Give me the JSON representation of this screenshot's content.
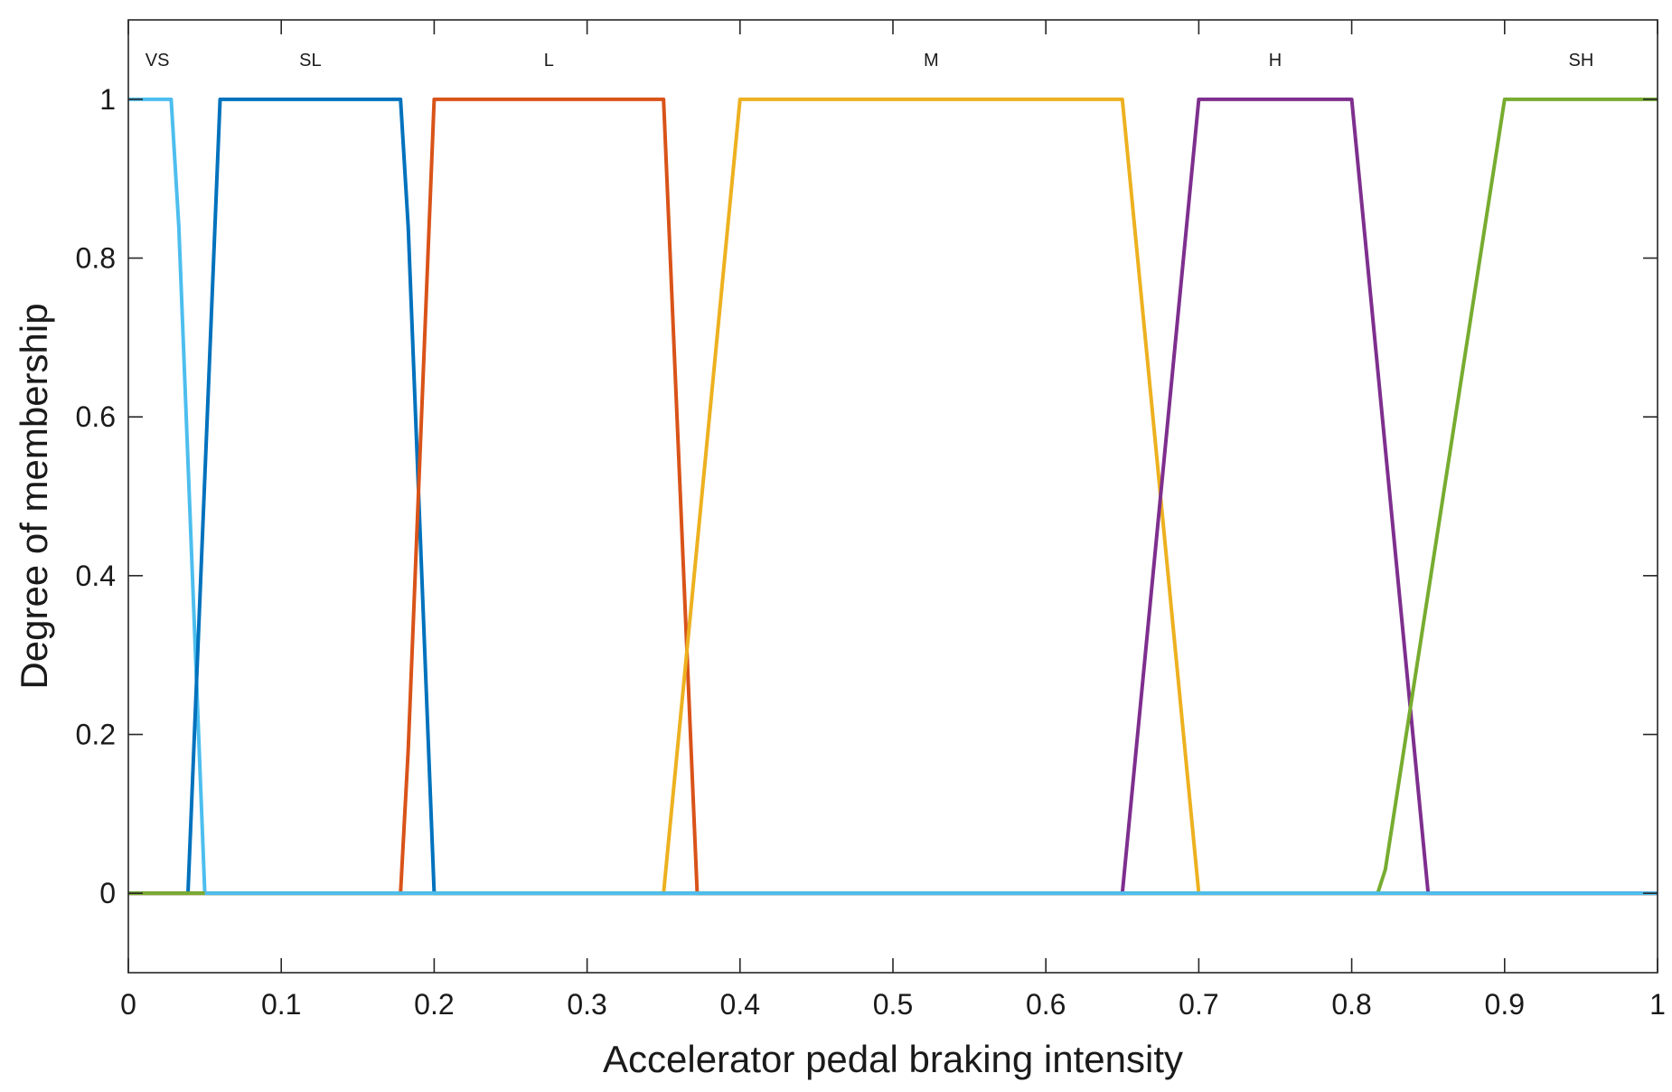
{
  "chart_data": {
    "type": "line",
    "title": "",
    "xlabel": "Accelerator pedal braking intensity",
    "ylabel": "Degree of membership",
    "xlim": [
      0,
      1
    ],
    "ylim": [
      -0.1,
      1.1
    ],
    "xticks": [
      0,
      0.1,
      0.2,
      0.3,
      0.4,
      0.5,
      0.6,
      0.7,
      0.8,
      0.9,
      1
    ],
    "xtick_labels": [
      "0",
      "0.1",
      "0.2",
      "0.3",
      "0.4",
      "0.5",
      "0.6",
      "0.7",
      "0.8",
      "0.9",
      "1"
    ],
    "yticks": [
      0,
      0.2,
      0.4,
      0.6,
      0.8,
      1
    ],
    "ytick_labels": [
      "0",
      "0.2",
      "0.4",
      "0.6",
      "0.8",
      "1"
    ],
    "grid": false,
    "series": [
      {
        "name": "VS",
        "color": "#4DBEEE",
        "x": [
          0,
          0.028,
          0.033,
          0.05,
          1
        ],
        "y": [
          1,
          1,
          0.84,
          0,
          0
        ]
      },
      {
        "name": "SL",
        "color": "#0072BD",
        "x": [
          0,
          0.039,
          0.06,
          0.178,
          0.183,
          0.2,
          1
        ],
        "y": [
          0,
          0,
          1,
          1,
          0.84,
          0,
          0
        ]
      },
      {
        "name": "L",
        "color": "#D95319",
        "x": [
          0,
          0.178,
          0.183,
          0.2,
          0.35,
          0.372,
          1
        ],
        "y": [
          0,
          0,
          0.18,
          1,
          1,
          0,
          0
        ]
      },
      {
        "name": "M",
        "color": "#EDB120",
        "x": [
          0,
          0.35,
          0.4,
          0.65,
          0.7,
          1
        ],
        "y": [
          0,
          0,
          1,
          1,
          0,
          0
        ]
      },
      {
        "name": "H",
        "color": "#7E2F8E",
        "x": [
          0,
          0.65,
          0.7,
          0.8,
          0.85,
          1
        ],
        "y": [
          0,
          0,
          1,
          1,
          0,
          0
        ]
      },
      {
        "name": "SH",
        "color": "#77AC30",
        "x": [
          0,
          0.817,
          0.822,
          0.9,
          1
        ],
        "y": [
          0,
          0,
          0.03,
          1,
          1
        ]
      }
    ],
    "labels": [
      {
        "text": "VS",
        "x": 0.019
      },
      {
        "text": "SL",
        "x": 0.119
      },
      {
        "text": "L",
        "x": 0.275
      },
      {
        "text": "M",
        "x": 0.525
      },
      {
        "text": "H",
        "x": 0.75
      },
      {
        "text": "SH",
        "x": 0.95
      }
    ],
    "label_y": 1.05,
    "zero_line_color": "#4DBEEE"
  }
}
